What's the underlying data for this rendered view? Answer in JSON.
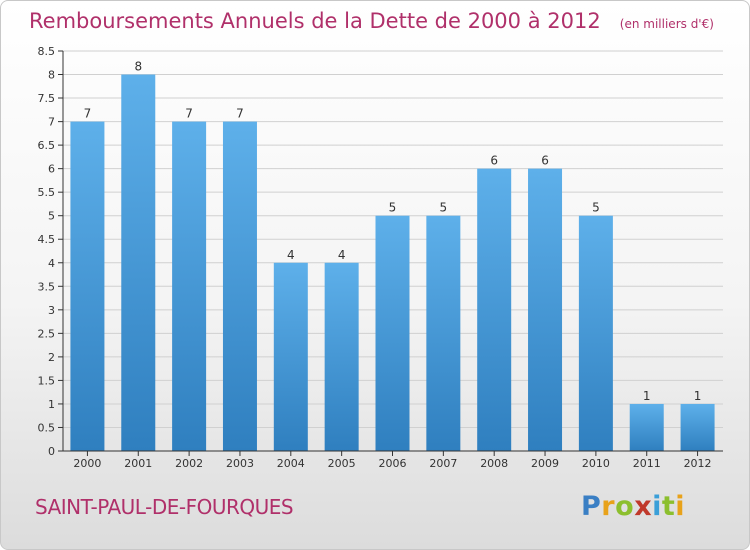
{
  "header": {
    "title": "Remboursements Annuels de la Dette de 2000 à 2012",
    "units": "(en milliers d'€)"
  },
  "footer": {
    "commune": "SAINT-PAUL-DE-FOURQUES",
    "logo_letters": [
      "P",
      "r",
      "o",
      "x",
      "i",
      "t",
      "i"
    ],
    "logo_colors": [
      "#3a7fc4",
      "#e8a21a",
      "#8cbf2e",
      "#c0392b",
      "#3a9fd8",
      "#8cbf2e",
      "#e8a21a"
    ]
  },
  "colors": {
    "title": "#b0306a",
    "bar_top": "#5eb0ea",
    "bar_bottom": "#2f7fbf",
    "axis": "#333333",
    "grid": "#d0d0d0"
  },
  "chart_data": {
    "type": "bar",
    "title": "Remboursements Annuels de la Dette de 2000 à 2012",
    "ylabel": "(en milliers d'€)",
    "xlabel": "",
    "categories": [
      "2000",
      "2001",
      "2002",
      "2003",
      "2004",
      "2005",
      "2006",
      "2007",
      "2008",
      "2009",
      "2010",
      "2011",
      "2012"
    ],
    "values": [
      7,
      8,
      7,
      7,
      4,
      4,
      5,
      5,
      6,
      6,
      5,
      1,
      1
    ],
    "data_labels": [
      "7",
      "8",
      "7",
      "7",
      "4",
      "4",
      "5",
      "5",
      "6",
      "6",
      "5",
      "1",
      "1"
    ],
    "ylim": [
      0,
      8.5
    ],
    "yticks": [
      "0",
      "0.5",
      "1",
      "1.5",
      "2",
      "2.5",
      "3",
      "3.5",
      "4",
      "4.5",
      "5",
      "5.5",
      "6",
      "6.5",
      "7",
      "7.5",
      "8",
      "8.5"
    ],
    "grid": true
  }
}
